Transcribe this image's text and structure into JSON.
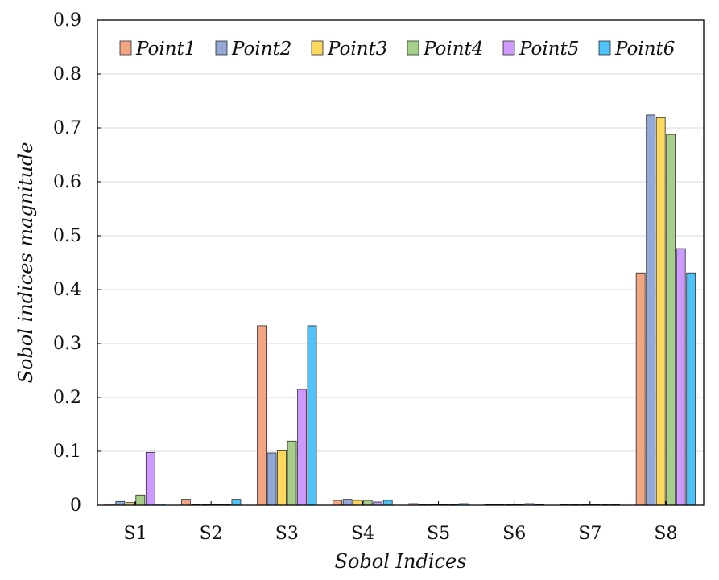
{
  "chart_data": {
    "type": "bar",
    "title": "",
    "xlabel": "Sobol Indices",
    "ylabel": "Sobol indices magnitude",
    "ylim": [
      0,
      0.9
    ],
    "yticks": [
      "0",
      "0.1",
      "0.2",
      "0.3",
      "0.4",
      "0.5",
      "0.6",
      "0.7",
      "0.8",
      "0.9"
    ],
    "grid": "horizontal",
    "legend_position": "top",
    "categories": [
      "S1",
      "S2",
      "S3",
      "S4",
      "S5",
      "S6",
      "S7",
      "S8"
    ],
    "series": [
      {
        "name": "Point1",
        "color": "#f4a582",
        "values": [
          0.002,
          0.011,
          0.333,
          0.009,
          0.003,
          0.001,
          0.001,
          0.431
        ]
      },
      {
        "name": "Point2",
        "color": "#92a8d9",
        "values": [
          0.007,
          0.001,
          0.097,
          0.011,
          0.0,
          0.001,
          0.0,
          0.724
        ]
      },
      {
        "name": "Point3",
        "color": "#fdd85d",
        "values": [
          0.005,
          0.001,
          0.101,
          0.009,
          0.0,
          0.001,
          0.0,
          0.719
        ]
      },
      {
        "name": "Point4",
        "color": "#a6d08a",
        "values": [
          0.019,
          0.001,
          0.119,
          0.009,
          0.0,
          0.001,
          0.0,
          0.688
        ]
      },
      {
        "name": "Point5",
        "color": "#cc99ff",
        "values": [
          0.098,
          0.001,
          0.215,
          0.006,
          0.001,
          0.003,
          0.001,
          0.476
        ]
      },
      {
        "name": "Point6",
        "color": "#4fc3f7",
        "values": [
          0.002,
          0.011,
          0.333,
          0.009,
          0.003,
          0.001,
          0.001,
          0.431
        ]
      }
    ]
  }
}
